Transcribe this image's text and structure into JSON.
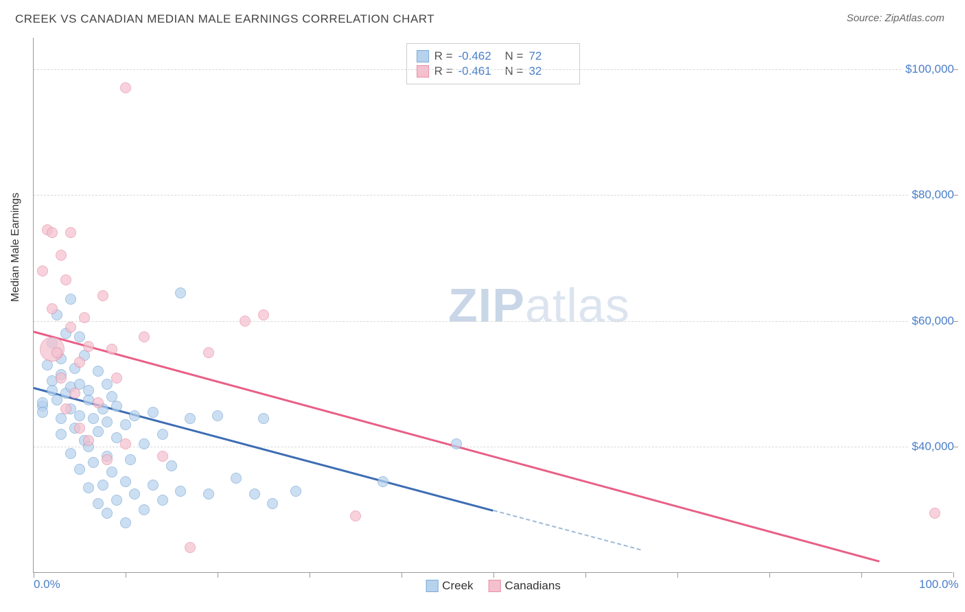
{
  "title": "CREEK VS CANADIAN MEDIAN MALE EARNINGS CORRELATION CHART",
  "source": "Source: ZipAtlas.com",
  "watermark_bold": "ZIP",
  "watermark_light": "atlas",
  "chart": {
    "type": "scatter",
    "y_axis_title": "Median Male Earnings",
    "xlim": [
      0,
      100
    ],
    "ylim": [
      20000,
      105000
    ],
    "x_ticks": [
      0,
      10,
      20,
      30,
      40,
      50,
      60,
      70,
      80,
      90,
      100
    ],
    "x_labels": [
      {
        "v": 0,
        "t": "0.0%"
      },
      {
        "v": 100,
        "t": "100.0%"
      }
    ],
    "y_gridlines": [
      40000,
      60000,
      80000,
      100000
    ],
    "y_labels": [
      {
        "v": 40000,
        "t": "$40,000"
      },
      {
        "v": 60000,
        "t": "$60,000"
      },
      {
        "v": 80000,
        "t": "$80,000"
      },
      {
        "v": 100000,
        "t": "$100,000"
      }
    ],
    "background_color": "#ffffff",
    "grid_color": "#d8d8d8",
    "series": [
      {
        "name": "Creek",
        "fill": "#b7d2ed",
        "stroke": "#7ba9d8",
        "fill_opacity": 0.7,
        "r_value": "-0.462",
        "n_value": "72",
        "marker_radius": 8,
        "trend": {
          "x1": 0,
          "y1": 49500,
          "x2": 50,
          "y2": 30000,
          "dash_after_x": 50,
          "dash_to_x": 66
        },
        "points": [
          [
            1,
            46500
          ],
          [
            1,
            47000
          ],
          [
            1,
            45500
          ],
          [
            1.5,
            53000
          ],
          [
            2,
            49000
          ],
          [
            2,
            50500
          ],
          [
            2,
            56500
          ],
          [
            2.5,
            47500
          ],
          [
            2.5,
            61000
          ],
          [
            3,
            44500
          ],
          [
            3,
            51500
          ],
          [
            3,
            54000
          ],
          [
            3,
            42000
          ],
          [
            3.5,
            48500
          ],
          [
            3.5,
            58000
          ],
          [
            4,
            39000
          ],
          [
            4,
            46000
          ],
          [
            4,
            49500
          ],
          [
            4,
            63500
          ],
          [
            4.5,
            43000
          ],
          [
            4.5,
            52500
          ],
          [
            5,
            36500
          ],
          [
            5,
            45000
          ],
          [
            5,
            50000
          ],
          [
            5,
            57500
          ],
          [
            5.5,
            41000
          ],
          [
            5.5,
            54500
          ],
          [
            6,
            33500
          ],
          [
            6,
            40000
          ],
          [
            6,
            47500
          ],
          [
            6,
            49000
          ],
          [
            6.5,
            37500
          ],
          [
            6.5,
            44500
          ],
          [
            7,
            31000
          ],
          [
            7,
            42500
          ],
          [
            7,
            52000
          ],
          [
            7.5,
            34000
          ],
          [
            7.5,
            46000
          ],
          [
            8,
            29500
          ],
          [
            8,
            38500
          ],
          [
            8,
            44000
          ],
          [
            8,
            50000
          ],
          [
            8.5,
            36000
          ],
          [
            8.5,
            48000
          ],
          [
            9,
            31500
          ],
          [
            9,
            41500
          ],
          [
            9,
            46500
          ],
          [
            10,
            28000
          ],
          [
            10,
            34500
          ],
          [
            10,
            43500
          ],
          [
            10.5,
            38000
          ],
          [
            11,
            32500
          ],
          [
            11,
            45000
          ],
          [
            12,
            30000
          ],
          [
            12,
            40500
          ],
          [
            13,
            34000
          ],
          [
            13,
            45500
          ],
          [
            14,
            31500
          ],
          [
            14,
            42000
          ],
          [
            15,
            37000
          ],
          [
            16,
            33000
          ],
          [
            16,
            64500
          ],
          [
            17,
            44500
          ],
          [
            19,
            32500
          ],
          [
            20,
            45000
          ],
          [
            22,
            35000
          ],
          [
            24,
            32500
          ],
          [
            25,
            44500
          ],
          [
            26,
            31000
          ],
          [
            28.5,
            33000
          ],
          [
            38,
            34500
          ],
          [
            46,
            40500
          ]
        ]
      },
      {
        "name": "Canadians",
        "fill": "#f4c0ce",
        "stroke": "#e88fa8",
        "fill_opacity": 0.7,
        "r_value": "-0.461",
        "n_value": "32",
        "marker_radius": 8,
        "trend": {
          "x1": 0,
          "y1": 58500,
          "x2": 92,
          "y2": 22000
        },
        "points": [
          [
            1,
            68000
          ],
          [
            1.5,
            74500
          ],
          [
            2,
            62000
          ],
          [
            2,
            74000
          ],
          [
            2.5,
            55000
          ],
          [
            3,
            51000
          ],
          [
            3,
            70500
          ],
          [
            3.5,
            46000
          ],
          [
            3.5,
            66500
          ],
          [
            4,
            59000
          ],
          [
            4,
            74000
          ],
          [
            4.5,
            48500
          ],
          [
            5,
            43000
          ],
          [
            5,
            53500
          ],
          [
            5.5,
            60500
          ],
          [
            6,
            41000
          ],
          [
            6,
            56000
          ],
          [
            7,
            47000
          ],
          [
            7.5,
            64000
          ],
          [
            8,
            38000
          ],
          [
            8.5,
            55500
          ],
          [
            9,
            51000
          ],
          [
            10,
            40500
          ],
          [
            10,
            97000
          ],
          [
            12,
            57500
          ],
          [
            14,
            38500
          ],
          [
            17,
            24000
          ],
          [
            19,
            55000
          ],
          [
            23,
            60000
          ],
          [
            25,
            61000
          ],
          [
            35,
            29000
          ],
          [
            98,
            29500
          ]
        ],
        "big_point": {
          "x": 2,
          "y": 55500,
          "r": 18
        }
      }
    ]
  },
  "legend_bottom": [
    {
      "label": "Creek",
      "fill": "#b7d2ed",
      "stroke": "#7ba9d8"
    },
    {
      "label": "Canadians",
      "fill": "#f4c0ce",
      "stroke": "#e88fa8"
    }
  ]
}
